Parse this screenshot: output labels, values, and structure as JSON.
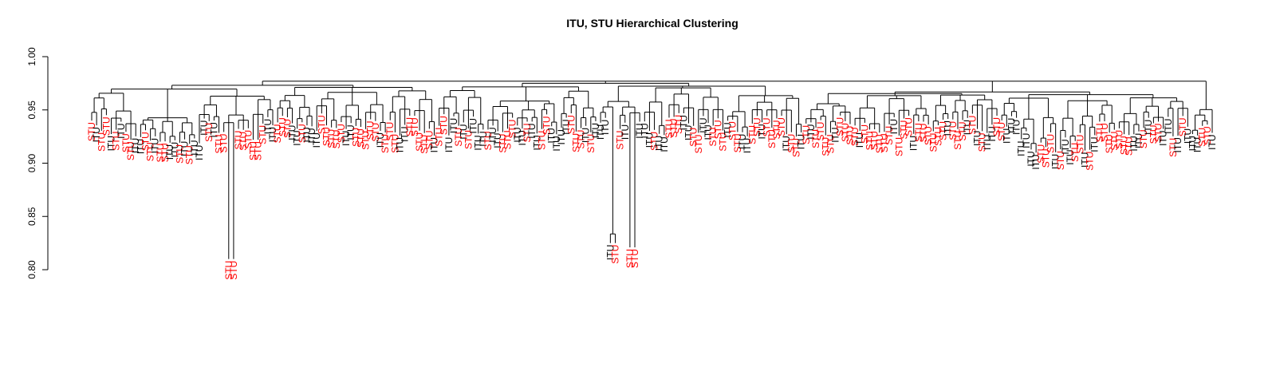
{
  "chart_data": {
    "type": "dendrogram",
    "title": "ITU, STU Hierarchical Clustering",
    "xlabel": "",
    "ylabel": "",
    "ylim": [
      0.8,
      1.0
    ],
    "yticks": [
      {
        "value": 0.8,
        "label": "0.80"
      },
      {
        "value": 0.85,
        "label": "0.85"
      },
      {
        "value": 0.9,
        "label": "0.90"
      },
      {
        "value": 0.95,
        "label": "0.95"
      },
      {
        "value": 1.0,
        "label": "1.00"
      }
    ],
    "leaf_labels": [
      "STU",
      "ITU"
    ],
    "colors": {
      "STU": "#ff0000",
      "ITU": "#000000",
      "tree": "#000000"
    },
    "notable_leaves": [
      {
        "label": "STU",
        "height": 0.81
      },
      {
        "label": "STU",
        "height": 0.81
      },
      {
        "label": "STU",
        "height": 0.922
      },
      {
        "label": "STU",
        "height": 0.922
      },
      {
        "label": "ITU",
        "height": 0.938
      },
      {
        "label": "ITU",
        "height": 0.825
      },
      {
        "label": "STU",
        "height": 0.825
      },
      {
        "label": "ITU",
        "height": 0.938
      },
      {
        "label": "STU",
        "height": 0.821
      },
      {
        "label": "STU",
        "height": 0.821
      }
    ],
    "grid": false,
    "legend": "none"
  }
}
